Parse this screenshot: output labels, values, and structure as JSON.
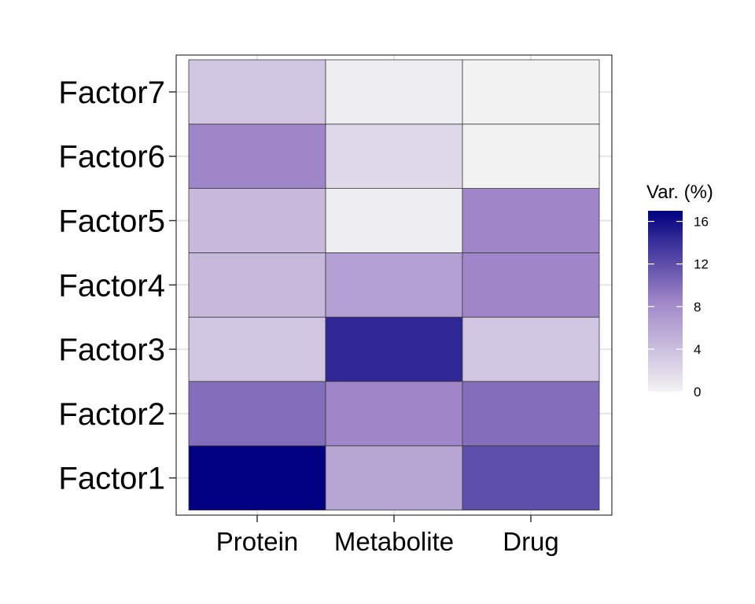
{
  "chart_data": {
    "type": "heatmap",
    "title": "",
    "xlabel": "",
    "ylabel": "",
    "x_categories": [
      "Protein",
      "Metabolite",
      "Drug"
    ],
    "y_categories": [
      "Factor1",
      "Factor2",
      "Factor3",
      "Factor4",
      "Factor5",
      "Factor6",
      "Factor7"
    ],
    "values": [
      [
        17.0,
        6.0,
        12.0
      ],
      [
        10.0,
        8.5,
        10.0
      ],
      [
        3.5,
        14.5,
        3.5
      ],
      [
        4.5,
        6.5,
        8.5
      ],
      [
        4.5,
        0.5,
        8.5
      ],
      [
        8.5,
        2.0,
        0.0
      ],
      [
        3.5,
        0.5,
        0.0
      ]
    ],
    "color_scale": {
      "low": "#f2f2f2",
      "mid": "#9f86c8",
      "high": "#000080",
      "range": [
        0,
        17
      ]
    },
    "legend": {
      "title": "Var. (%)",
      "ticks": [
        0,
        4,
        8,
        12,
        16
      ],
      "placement": "right"
    },
    "grid": true
  }
}
